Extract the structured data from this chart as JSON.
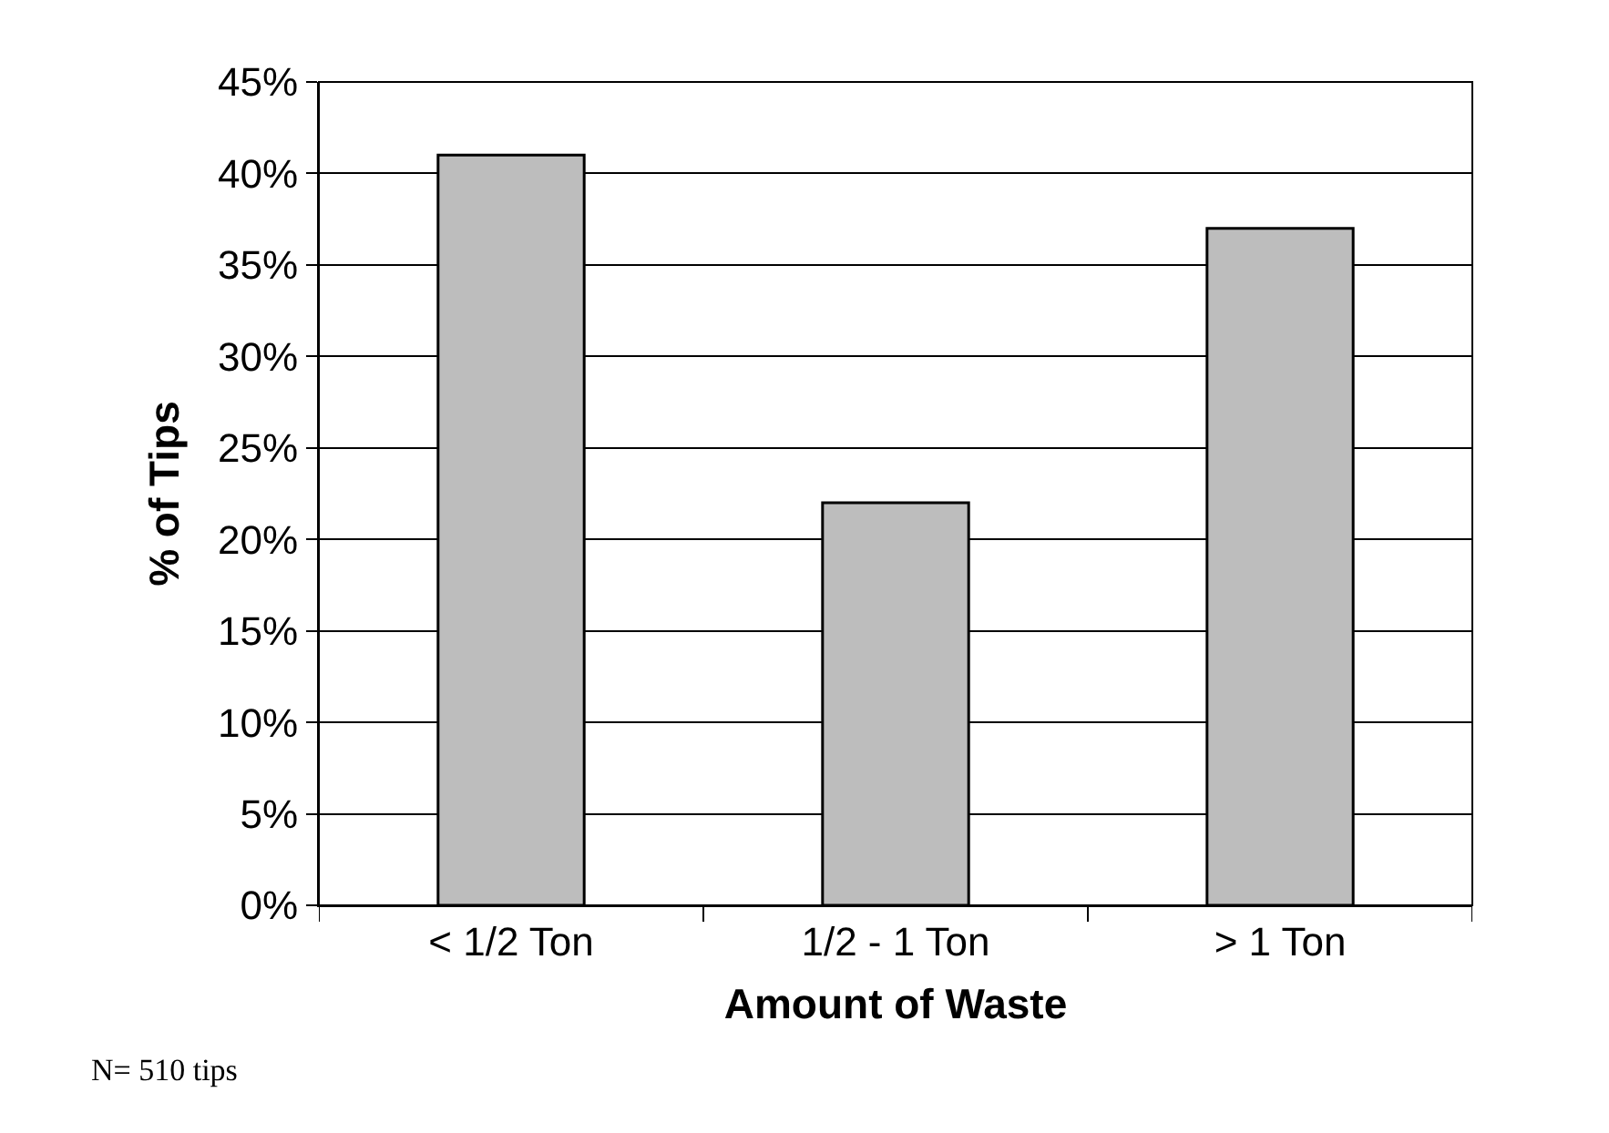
{
  "chart_data": {
    "type": "bar",
    "xlabel": "Amount of Waste",
    "ylabel": "% of Tips",
    "categories": [
      "< 1/2 Ton",
      "1/2 - 1 Ton",
      "> 1 Ton"
    ],
    "values": [
      41,
      22,
      37
    ],
    "color": "#bdbdbd",
    "ylim": [
      0,
      45
    ],
    "yticks": [
      {
        "value": 0,
        "label": "0%"
      },
      {
        "value": 5,
        "label": "5%"
      },
      {
        "value": 10,
        "label": "10%"
      },
      {
        "value": 15,
        "label": "15%"
      },
      {
        "value": 20,
        "label": "20%"
      },
      {
        "value": 25,
        "label": "25%"
      },
      {
        "value": 30,
        "label": "30%"
      },
      {
        "value": 35,
        "label": "35%"
      },
      {
        "value": 40,
        "label": "40%"
      },
      {
        "value": 45,
        "label": "45%"
      }
    ],
    "grid": "y",
    "legend": false,
    "annotations": [
      "N= 510 tips"
    ]
  }
}
